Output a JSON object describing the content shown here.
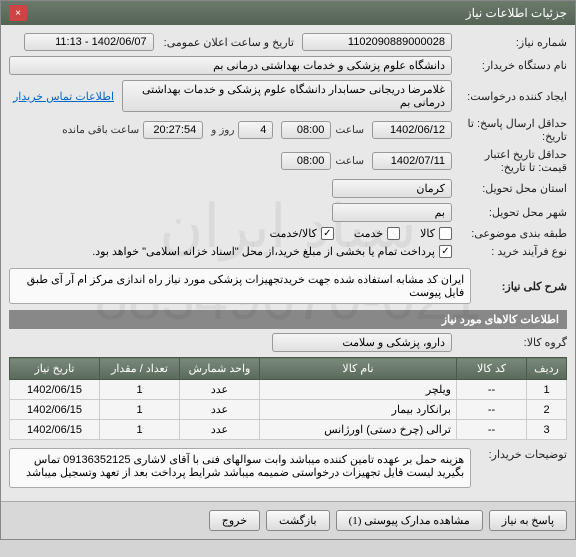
{
  "window": {
    "title": "جزئیات اطلاعات نیاز",
    "close": "×"
  },
  "fields": {
    "requestNo": {
      "label": "شماره نیاز:",
      "value": "1102090889000028"
    },
    "announceDate": {
      "label": "تاریخ و ساعت اعلان عمومی:",
      "value": "1402/06/07 - 11:13"
    },
    "buyerOrg": {
      "label": "نام دستگاه خریدار:",
      "value": "دانشگاه علوم پزشکی و خدمات بهداشتی درمانی بم"
    },
    "requester": {
      "label": "ایجاد کننده درخواست:",
      "value": "غلامرضا دریجانی حسابدار دانشگاه علوم پزشکی و خدمات بهداشتی درمانی بم"
    },
    "contactLink": "اطلاعات تماس خریدار",
    "deadline": {
      "label": "حداقل ارسال پاسخ: تا تاریخ:",
      "date": "1402/06/12",
      "timeLabel": "ساعت",
      "time": "08:00",
      "daysLabel": "روز و",
      "days": "4",
      "remainLabel": "ساعت باقی مانده",
      "remain": "20:27:54"
    },
    "creditEnd": {
      "label": "حداقل تاریخ اعتبار قیمت: تا تاریخ:",
      "date": "1402/07/11",
      "timeLabel": "ساعت",
      "time": "08:00"
    },
    "province": {
      "label": "استان محل تحویل:",
      "value": "کرمان"
    },
    "city": {
      "label": "شهر محل تحویل:",
      "value": "بم"
    },
    "category": {
      "label": "طبقه بندی موضوعی:",
      "options": {
        "goods": "کالا",
        "service": "خدمت",
        "both": "کالا/خدمت"
      }
    },
    "purchaseType": {
      "label": "نوع فرآیند خرید :",
      "value": "پرداخت تمام یا بخشی از مبلغ خرید،از محل \"اسناد خزانه اسلامی\" خواهد بود."
    },
    "description": {
      "label": "شرح کلی نیاز:",
      "value": "ایران کد مشابه استفاده شده جهت خرید‌تجهیزات پزشکی مورد نیاز راه اندازی مرکز ام آر آی طبق فایل پیوست"
    },
    "itemsHeader": "اطلاعات کالاهای مورد نیاز",
    "group": {
      "label": "گروه کالا:",
      "value": "دارو، پزشکی و سلامت"
    },
    "buyerNotes": {
      "label": "توضیحات خریدار:",
      "value": "هزینه حمل بر عهده تامین کننده میباشد وابت سوالهای فنی با آقای لاشاری 09136352125 تماس بگیرید لیست فایل تجهیزات درخواستی ضمیمه میباشد شرایط پرداخت بعد از تعهد وتسجیل میباشد"
    }
  },
  "table": {
    "headers": [
      "ردیف",
      "کد کالا",
      "نام کالا",
      "واحد شمارش",
      "تعداد / مقدار",
      "تاریخ نیاز"
    ],
    "rows": [
      [
        "1",
        "--",
        "ویلچر",
        "عدد",
        "1",
        "1402/06/15"
      ],
      [
        "2",
        "--",
        "برانکارد بیمار",
        "عدد",
        "1",
        "1402/06/15"
      ],
      [
        "3",
        "--",
        "ترالی (چرخ دستی) اورژانس",
        "عدد",
        "1",
        "1402/06/15"
      ]
    ]
  },
  "buttons": {
    "respond": "پاسخ به نیاز",
    "attachments": "مشاهده مدارک پیوستی (1)",
    "back": "بازگشت",
    "exit": "خروج"
  },
  "watermark": "ستاد ایران\n021-88349670"
}
